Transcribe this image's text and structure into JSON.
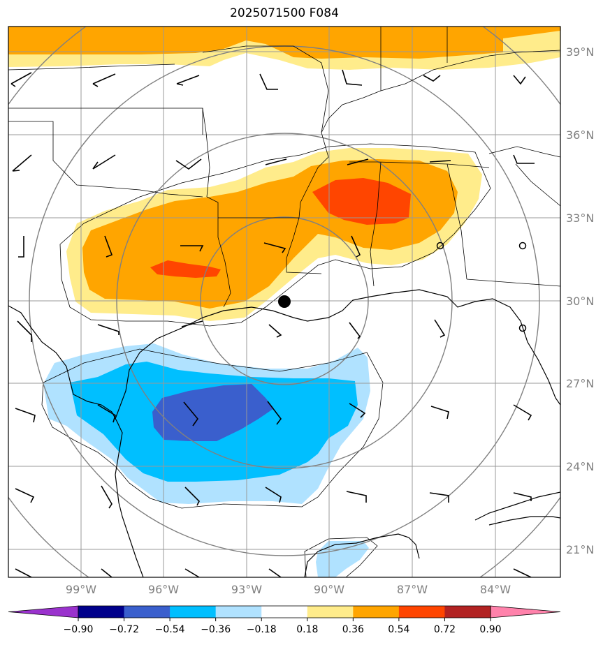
{
  "title": "2025071500 F084",
  "lat_labels": [
    "39°N",
    "36°N",
    "33°N",
    "30°N",
    "27°N",
    "24°N",
    "21°N"
  ],
  "lon_labels": [
    "99°W",
    "96°W",
    "93°W",
    "90°W",
    "87°W",
    "84°W"
  ],
  "colorbar": {
    "ticks": [
      "−0.90",
      "−0.72",
      "−0.54",
      "−0.36",
      "−0.18",
      "0.18",
      "0.36",
      "0.54",
      "0.72",
      "0.90"
    ],
    "colors": [
      "#9a32cd",
      "#00008b",
      "#3a5fcd",
      "#00bfff",
      "#b0e2ff",
      "#ffffff",
      "#ffec8b",
      "#ffa500",
      "#ff4500",
      "#b22222",
      "#ff82ab"
    ]
  },
  "colors": {
    "gridline": "#999999",
    "range_ring": "#808080",
    "coastline": "#000000",
    "positive_light": "#ffec8b",
    "positive_mid": "#ffa500",
    "positive_high": "#ff4500",
    "negative_light": "#b0e2ff",
    "negative_mid": "#00bfff",
    "negative_high": "#3a5fcd",
    "center_marker": "#000000"
  },
  "icons": {
    "center": "filled-circle-marker",
    "wind": "wind-barb",
    "calm": "calm-wind-circle"
  }
}
